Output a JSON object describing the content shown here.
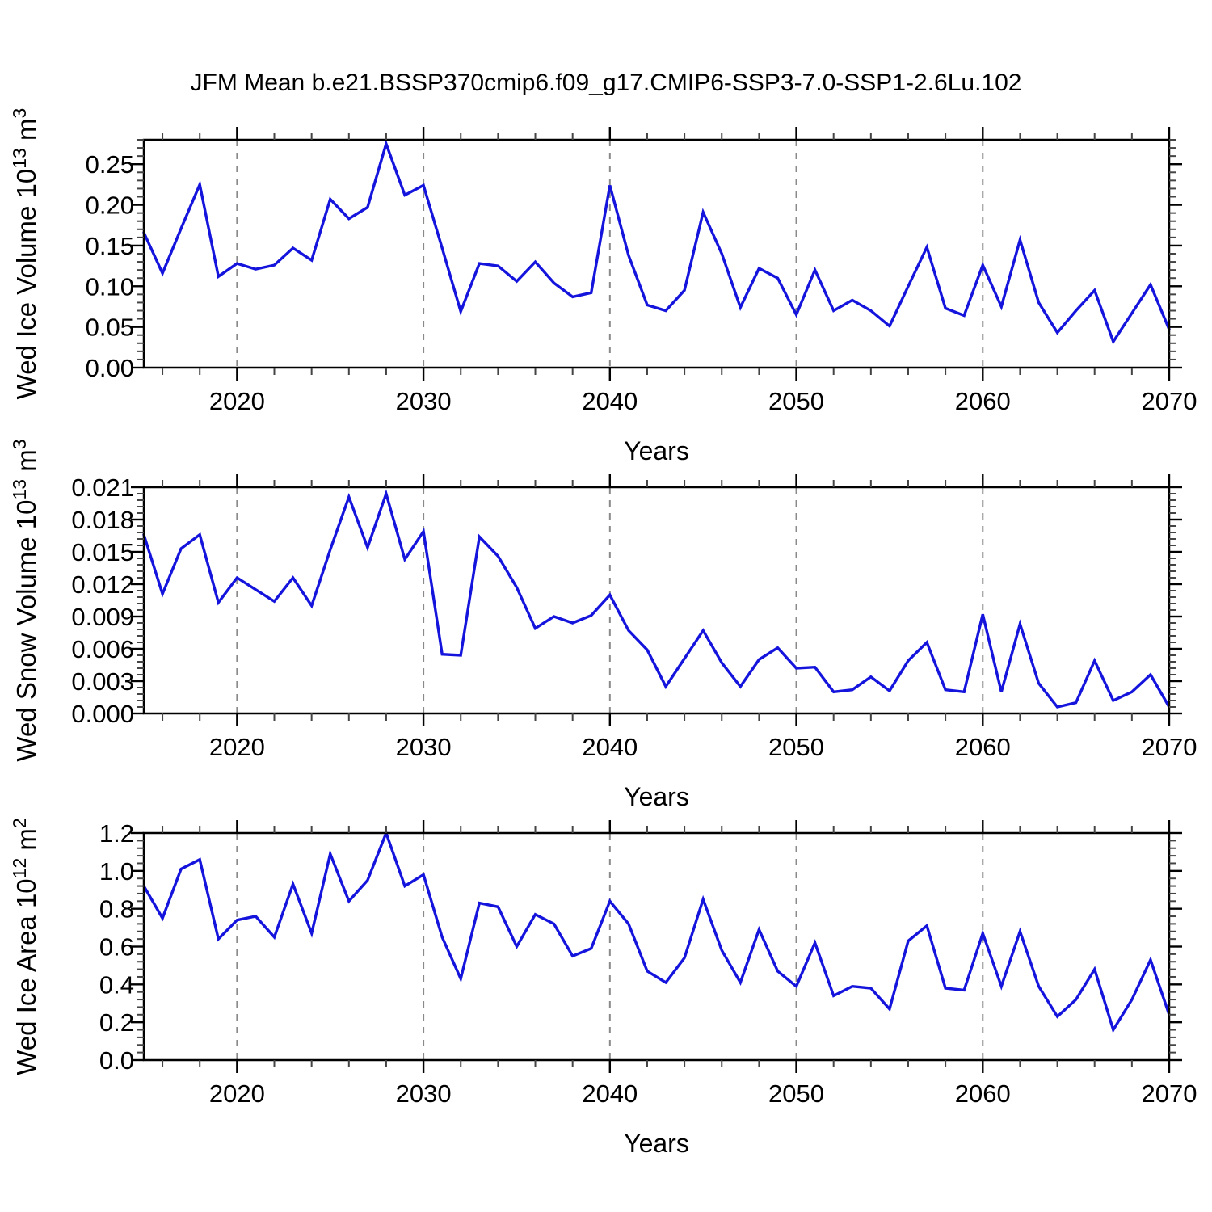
{
  "main": {
    "title": "JFM Mean b.e21.BSSP370cmip6.f09_g17.CMIP6-SSP3-7.0-SSP1-2.6Lu.102"
  },
  "chart_data": {
    "type": "line",
    "title": "JFM Mean b.e21.BSSP370cmip6.f09_g17.CMIP6-SSP3-7.0-SSP1-2.6Lu.102",
    "xlabel": "Years",
    "line_color": "#1414dd",
    "grid_color": "#8a8a8a",
    "years": [
      2015,
      2016,
      2017,
      2018,
      2019,
      2020,
      2021,
      2022,
      2023,
      2024,
      2025,
      2026,
      2027,
      2028,
      2029,
      2030,
      2031,
      2032,
      2033,
      2034,
      2035,
      2036,
      2037,
      2038,
      2039,
      2040,
      2041,
      2042,
      2043,
      2044,
      2045,
      2046,
      2047,
      2048,
      2049,
      2050,
      2051,
      2052,
      2053,
      2054,
      2055,
      2056,
      2057,
      2058,
      2059,
      2060,
      2061,
      2062,
      2063,
      2064,
      2065,
      2066,
      2067,
      2068,
      2069,
      2070
    ],
    "x_axis": {
      "lim": [
        2015,
        2070
      ],
      "major_ticks": [
        2020,
        2030,
        2040,
        2050,
        2060,
        2070
      ],
      "major_labels": [
        "2020",
        "2030",
        "2040",
        "2050",
        "2060",
        "2070"
      ],
      "minor_step": 2,
      "gridlines": [
        2020,
        2030,
        2040,
        2050,
        2060
      ],
      "grid_on": true,
      "legend": "none"
    },
    "panels": [
      {
        "name": "wed-ice-volume",
        "ylabel_text": "Wed Ice Volume 10^13 m^3",
        "ylabel_parts": [
          {
            "text": "Wed Ice Volume 10"
          },
          {
            "text": "13",
            "sup": true
          },
          {
            "text": " m"
          },
          {
            "text": "3",
            "sup": true
          }
        ],
        "ylim": [
          0,
          0.28
        ],
        "y_major": [
          0.0,
          0.05,
          0.1,
          0.15,
          0.2,
          0.25
        ],
        "y_major_labels": [
          "0.00",
          "0.05",
          "0.10",
          "0.15",
          "0.20",
          "0.25"
        ],
        "y_minor_step": 0.01,
        "values": [
          0.166,
          0.116,
          0.171,
          0.225,
          0.112,
          0.128,
          0.121,
          0.126,
          0.147,
          0.132,
          0.207,
          0.183,
          0.197,
          0.275,
          0.212,
          0.224,
          0.147,
          0.069,
          0.128,
          0.125,
          0.106,
          0.13,
          0.104,
          0.087,
          0.092,
          0.224,
          0.138,
          0.077,
          0.07,
          0.095,
          0.191,
          0.14,
          0.074,
          0.122,
          0.11,
          0.065,
          0.12,
          0.07,
          0.083,
          0.07,
          0.051,
          0.1,
          0.148,
          0.073,
          0.064,
          0.126,
          0.075,
          0.157,
          0.08,
          0.043,
          0.07,
          0.095,
          0.032,
          0.067,
          0.102,
          0.047
        ]
      },
      {
        "name": "wed-snow-volume",
        "ylabel_text": "Wed Snow Volume 10^13 m^3",
        "ylabel_parts": [
          {
            "text": "Wed Snow Volume 10"
          },
          {
            "text": "13",
            "sup": true
          },
          {
            "text": " m"
          },
          {
            "text": "3",
            "sup": true
          }
        ],
        "ylim": [
          0,
          0.021
        ],
        "y_major": [
          0.0,
          0.003,
          0.006,
          0.009,
          0.012,
          0.015,
          0.018,
          0.021
        ],
        "y_major_labels": [
          "0.000",
          "0.003",
          "0.006",
          "0.009",
          "0.012",
          "0.015",
          "0.018",
          "0.021"
        ],
        "y_minor_step": 0.0006,
        "values": [
          0.0166,
          0.0111,
          0.0153,
          0.0166,
          0.0103,
          0.0126,
          0.0115,
          0.0104,
          0.0126,
          0.01,
          0.0152,
          0.0201,
          0.0154,
          0.0204,
          0.0143,
          0.0169,
          0.0055,
          0.0054,
          0.0164,
          0.0146,
          0.0117,
          0.0079,
          0.009,
          0.0084,
          0.0091,
          0.011,
          0.0077,
          0.0059,
          0.0025,
          0.0051,
          0.0077,
          0.0047,
          0.0025,
          0.005,
          0.0061,
          0.0042,
          0.0043,
          0.002,
          0.0022,
          0.0034,
          0.0021,
          0.0049,
          0.0066,
          0.0022,
          0.002,
          0.0092,
          0.002,
          0.0083,
          0.0028,
          0.0006,
          0.001,
          0.0049,
          0.0012,
          0.002,
          0.0036,
          0.0006
        ]
      },
      {
        "name": "wed-ice-area",
        "ylabel_text": "Wed Ice Area 10^12 m^2",
        "ylabel_parts": [
          {
            "text": "Wed Ice Area 10"
          },
          {
            "text": "12",
            "sup": true
          },
          {
            "text": " m"
          },
          {
            "text": "2",
            "sup": true
          }
        ],
        "ylim": [
          0,
          1.2
        ],
        "y_major": [
          0.0,
          0.2,
          0.4,
          0.6,
          0.8,
          1.0,
          1.2
        ],
        "y_major_labels": [
          "0.0",
          "0.2",
          "0.4",
          "0.6",
          "0.8",
          "1.0",
          "1.2"
        ],
        "y_minor_step": 0.04,
        "values": [
          0.92,
          0.75,
          1.01,
          1.06,
          0.64,
          0.74,
          0.76,
          0.65,
          0.93,
          0.67,
          1.09,
          0.84,
          0.95,
          1.2,
          0.92,
          0.98,
          0.65,
          0.43,
          0.83,
          0.81,
          0.6,
          0.77,
          0.72,
          0.55,
          0.59,
          0.84,
          0.72,
          0.47,
          0.41,
          0.54,
          0.85,
          0.58,
          0.41,
          0.69,
          0.47,
          0.39,
          0.62,
          0.34,
          0.39,
          0.38,
          0.27,
          0.63,
          0.71,
          0.38,
          0.37,
          0.67,
          0.39,
          0.68,
          0.39,
          0.23,
          0.32,
          0.48,
          0.16,
          0.32,
          0.53,
          0.24
        ]
      }
    ]
  }
}
